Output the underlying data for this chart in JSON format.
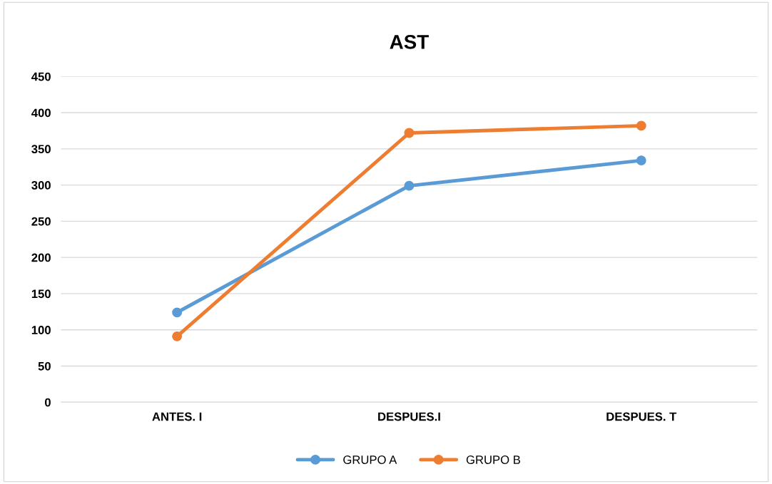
{
  "chart_data": {
    "type": "line",
    "title": "AST",
    "categories": [
      "ANTES. I",
      "DESPUES.I",
      "DESPUES. T"
    ],
    "series": [
      {
        "name": "GRUPO A",
        "color": "#5b9bd5",
        "values": [
          124,
          299,
          334
        ]
      },
      {
        "name": "GRUPO B",
        "color": "#ed7d31",
        "values": [
          91,
          372,
          382
        ]
      }
    ],
    "ylim": [
      0,
      450
    ],
    "yticks": [
      0,
      50,
      100,
      150,
      200,
      250,
      300,
      350,
      400,
      450
    ],
    "grid": "y",
    "legend": "bottom",
    "marker": "circle",
    "line_style": "solid"
  }
}
